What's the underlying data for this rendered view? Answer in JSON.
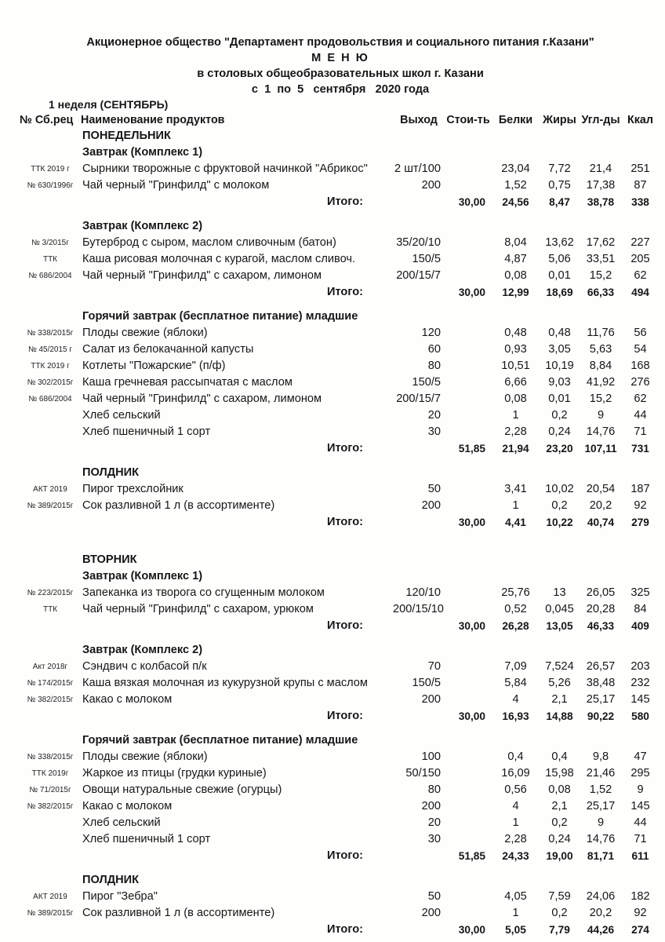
{
  "header": {
    "org": "Акционерное общество \"Департамент продовольствия и социального питания г.Казани\"",
    "title": "М Е Н Ю",
    "subtitle": "в столовых общеобразовательных школ г. Казани",
    "date_line": "с  1  по  5   сентября   2020 года",
    "week": "1 неделя (СЕНТЯБРЬ)"
  },
  "columns": {
    "code": "№ Сб.рец",
    "name": "Наименование продуктов",
    "out": "Выход",
    "cost": "Стои-ть",
    "protein": "Белки",
    "fat": "Жиры",
    "carbs": "Угл-ды",
    "kcal": "Ккал"
  },
  "total_label": "Итого:",
  "days": [
    {
      "name": "ПОНЕДЕЛЬНИК",
      "sections": [
        {
          "title": "Завтрак (Комплекс 1)",
          "items": [
            {
              "code": "ТТК 2019 г",
              "name": "Сырники творожные с фруктовой начинкой \"Абрикос\"",
              "out": "2 шт/100",
              "protein": "23,04",
              "fat": "7,72",
              "carbs": "21,4",
              "kcal": "251"
            },
            {
              "code": "№ 630/1996г",
              "name": "Чай черный \"Гринфилд\" с молоком",
              "out": "200",
              "protein": "1,52",
              "fat": "0,75",
              "carbs": "17,38",
              "kcal": "87"
            }
          ],
          "total": {
            "cost": "30,00",
            "protein": "24,56",
            "fat": "8,47",
            "carbs": "38,78",
            "kcal": "338"
          }
        },
        {
          "title": "Завтрак (Комплекс 2)",
          "items": [
            {
              "code": "№ 3/2015г",
              "name": "Бутерброд с сыром, маслом сливочным (батон)",
              "out": "35/20/10",
              "protein": "8,04",
              "fat": "13,62",
              "carbs": "17,62",
              "kcal": "227"
            },
            {
              "code": "ТТК",
              "name": "Каша рисовая молочная с курагой, маслом сливоч.",
              "out": "150/5",
              "protein": "4,87",
              "fat": "5,06",
              "carbs": "33,51",
              "kcal": "205"
            },
            {
              "code": "№ 686/2004",
              "name": "Чай черный \"Гринфилд\" с сахаром, лимоном",
              "out": "200/15/7",
              "protein": "0,08",
              "fat": "0,01",
              "carbs": "15,2",
              "kcal": "62"
            }
          ],
          "total": {
            "cost": "30,00",
            "protein": "12,99",
            "fat": "18,69",
            "carbs": "66,33",
            "kcal": "494"
          }
        },
        {
          "title": "Горячий завтрак (бесплатное питание) младшие",
          "items": [
            {
              "code": "№ 338/2015г",
              "name": "Плоды свежие (яблоки)",
              "out": "120",
              "protein": "0,48",
              "fat": "0,48",
              "carbs": "11,76",
              "kcal": "56"
            },
            {
              "code": "№ 45/2015 г",
              "name": "Салат из белокачанной капусты",
              "out": "60",
              "protein": "0,93",
              "fat": "3,05",
              "carbs": "5,63",
              "kcal": "54"
            },
            {
              "code": "ТТК 2019 г",
              "name": "Котлеты \"Пожарские\" (п/ф)",
              "out": "80",
              "protein": "10,51",
              "fat": "10,19",
              "carbs": "8,84",
              "kcal": "168"
            },
            {
              "code": "№ 302/2015г",
              "name": "Каша гречневая рассыпчатая с маслом",
              "out": "150/5",
              "protein": "6,66",
              "fat": "9,03",
              "carbs": "41,92",
              "kcal": "276"
            },
            {
              "code": "№ 686/2004",
              "name": "Чай черный \"Гринфилд\" с сахаром, лимоном",
              "out": "200/15/7",
              "protein": "0,08",
              "fat": "0,01",
              "carbs": "15,2",
              "kcal": "62"
            },
            {
              "code": "",
              "name": "Хлеб сельский",
              "out": "20",
              "protein": "1",
              "fat": "0,2",
              "carbs": "9",
              "kcal": "44"
            },
            {
              "code": "",
              "name": "Хлеб пшеничный 1 сорт",
              "out": "30",
              "protein": "2,28",
              "fat": "0,24",
              "carbs": "14,76",
              "kcal": "71"
            }
          ],
          "total": {
            "cost": "51,85",
            "protein": "21,94",
            "fat": "23,20",
            "carbs": "107,11",
            "kcal": "731"
          }
        },
        {
          "title": "ПОЛДНИК",
          "items": [
            {
              "code": "АКТ 2019",
              "name": "Пирог трехслойник",
              "out": "50",
              "protein": "3,41",
              "fat": "10,02",
              "carbs": "20,54",
              "kcal": "187"
            },
            {
              "code": "№ 389/2015г",
              "name": "Сок разливной 1 л (в ассортименте)",
              "out": "200",
              "protein": "1",
              "fat": "0,2",
              "carbs": "20,2",
              "kcal": "92"
            }
          ],
          "total": {
            "cost": "30,00",
            "protein": "4,41",
            "fat": "10,22",
            "carbs": "40,74",
            "kcal": "279"
          }
        }
      ]
    },
    {
      "name": "ВТОРНИК",
      "sections": [
        {
          "title": "Завтрак (Комплекс 1)",
          "items": [
            {
              "code": "№ 223/2015г",
              "name": "Запеканка из творога со сгущенным молоком",
              "out": "120/10",
              "protein": "25,76",
              "fat": "13",
              "carbs": "26,05",
              "kcal": "325"
            },
            {
              "code": "ТТК",
              "name": "Чай черный \"Гринфилд\" с сахаром, урюком",
              "out": "200/15/10",
              "protein": "0,52",
              "fat": "0,045",
              "carbs": "20,28",
              "kcal": "84"
            }
          ],
          "total": {
            "cost": "30,00",
            "protein": "26,28",
            "fat": "13,05",
            "carbs": "46,33",
            "kcal": "409"
          }
        },
        {
          "title": "Завтрак (Комплекс 2)",
          "items": [
            {
              "code": "Акт 2018г",
              "name": "Сэндвич с колбасой п/к",
              "out": "70",
              "protein": "7,09",
              "fat": "7,524",
              "carbs": "26,57",
              "kcal": "203"
            },
            {
              "code": "№ 174/2015г",
              "name": "Каша вязкая молочная из кукурузной крупы с маслом",
              "out": "150/5",
              "protein": "5,84",
              "fat": "5,26",
              "carbs": "38,48",
              "kcal": "232"
            },
            {
              "code": "№ 382/2015г",
              "name": "Какао с молоком",
              "out": "200",
              "protein": "4",
              "fat": "2,1",
              "carbs": "25,17",
              "kcal": "145"
            }
          ],
          "total": {
            "cost": "30,00",
            "protein": "16,93",
            "fat": "14,88",
            "carbs": "90,22",
            "kcal": "580"
          }
        },
        {
          "title": "Горячий завтрак (бесплатное питание) младшие",
          "items": [
            {
              "code": "№ 338/2015г",
              "name": "Плоды свежие (яблоки)",
              "out": "100",
              "protein": "0,4",
              "fat": "0,4",
              "carbs": "9,8",
              "kcal": "47"
            },
            {
              "code": "ТТК 2019г",
              "name": "Жаркое из птицы (грудки куриные)",
              "out": "50/150",
              "protein": "16,09",
              "fat": "15,98",
              "carbs": "21,46",
              "kcal": "295"
            },
            {
              "code": "№ 71/2015г",
              "name": "Овощи натуральные свежие (огурцы)",
              "out": "80",
              "protein": "0,56",
              "fat": "0,08",
              "carbs": "1,52",
              "kcal": "9"
            },
            {
              "code": "№ 382/2015г",
              "name": "Какао с молоком",
              "out": "200",
              "protein": "4",
              "fat": "2,1",
              "carbs": "25,17",
              "kcal": "145"
            },
            {
              "code": "",
              "name": "Хлеб сельский",
              "out": "20",
              "protein": "1",
              "fat": "0,2",
              "carbs": "9",
              "kcal": "44"
            },
            {
              "code": "",
              "name": "Хлеб пшеничный 1 сорт",
              "out": "30",
              "protein": "2,28",
              "fat": "0,24",
              "carbs": "14,76",
              "kcal": "71"
            }
          ],
          "total": {
            "cost": "51,85",
            "protein": "24,33",
            "fat": "19,00",
            "carbs": "81,71",
            "kcal": "611"
          }
        },
        {
          "title": "ПОЛДНИК",
          "items": [
            {
              "code": "АКТ 2019",
              "name": "Пирог \"Зебра\"",
              "out": "50",
              "protein": "4,05",
              "fat": "7,59",
              "carbs": "24,06",
              "kcal": "182"
            },
            {
              "code": "№ 389/2015г",
              "name": "Сок разливной 1 л (в ассортименте)",
              "out": "200",
              "protein": "1",
              "fat": "0,2",
              "carbs": "20,2",
              "kcal": "92"
            }
          ],
          "total": {
            "cost": "30,00",
            "protein": "5,05",
            "fat": "7,79",
            "carbs": "44,26",
            "kcal": "274"
          }
        }
      ]
    }
  ]
}
